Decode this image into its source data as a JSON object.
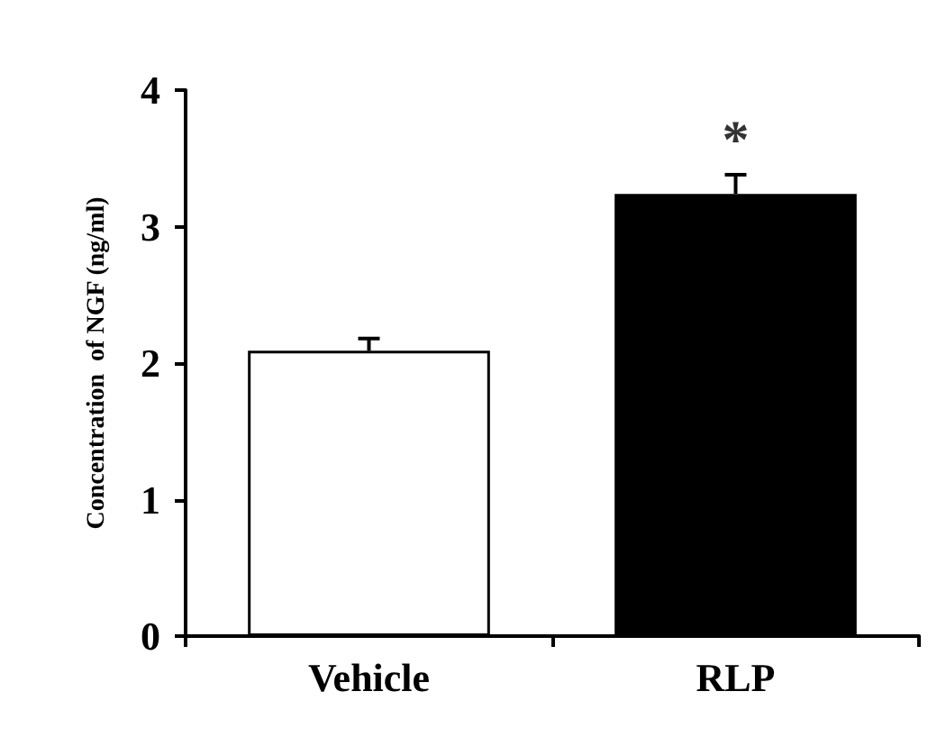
{
  "chart_data": {
    "type": "bar",
    "ylabel": "Concentration  of NGF (ng/ml)",
    "categories": [
      "Vehicle",
      "RLP"
    ],
    "values": [
      2.09,
      3.24
    ],
    "colors": [
      "#ffffff",
      "#000000"
    ],
    "errors": [
      0.09,
      0.14
    ],
    "ylim": [
      0,
      4
    ],
    "yticks": [
      0,
      1,
      2,
      3,
      4
    ],
    "grid": false,
    "annotations": [
      "*"
    ]
  }
}
